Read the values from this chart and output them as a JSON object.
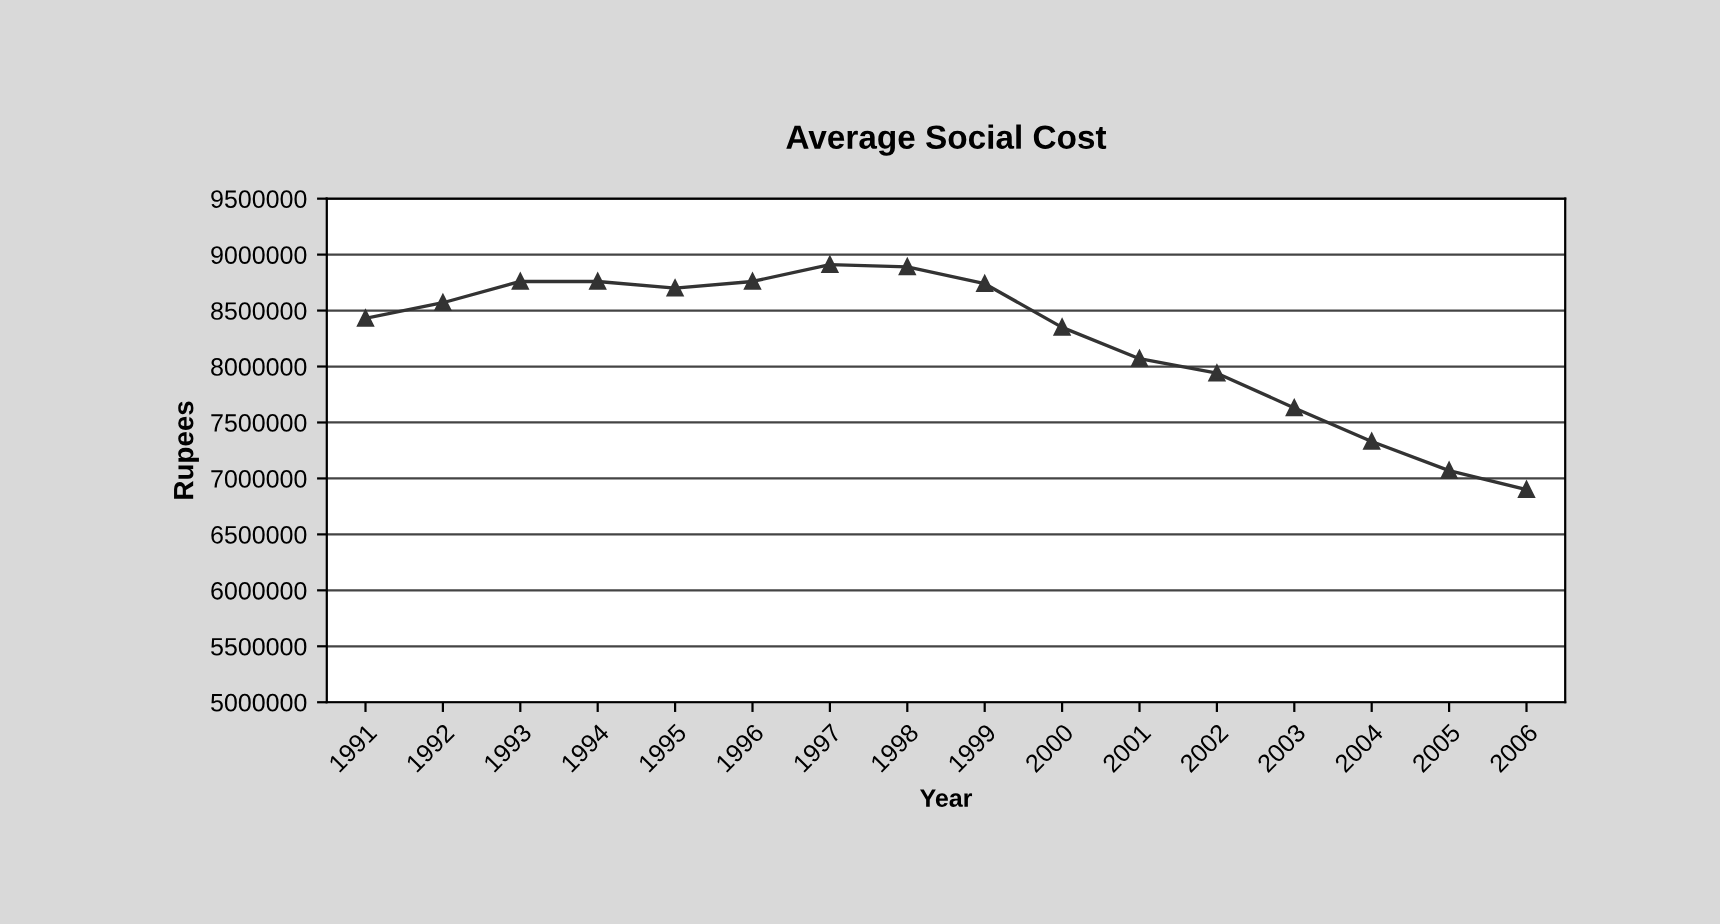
{
  "chart_data": {
    "type": "line",
    "title": "Average Social Cost",
    "xlabel": "Year",
    "ylabel": "Rupees",
    "categories": [
      "1991",
      "1992",
      "1993",
      "1994",
      "1995",
      "1996",
      "1997",
      "1998",
      "1999",
      "2000",
      "2001",
      "2002",
      "2003",
      "2004",
      "2005",
      "2006"
    ],
    "series": [
      {
        "color": "#333333",
        "values": [
          8430000,
          8570000,
          8760000,
          8760000,
          8700000,
          8760000,
          8910000,
          8890000,
          8740000,
          8350000,
          8070000,
          7940000,
          7630000,
          7330000,
          7070000,
          6900000
        ]
      }
    ],
    "ylim": [
      5000000,
      9500000
    ],
    "yticks": [
      5000000,
      5500000,
      6000000,
      6500000,
      7000000,
      7500000,
      8000000,
      8500000,
      9000000,
      9500000
    ],
    "grid": "y",
    "marker": "triangle",
    "line_style": "solid",
    "legend": false
  }
}
